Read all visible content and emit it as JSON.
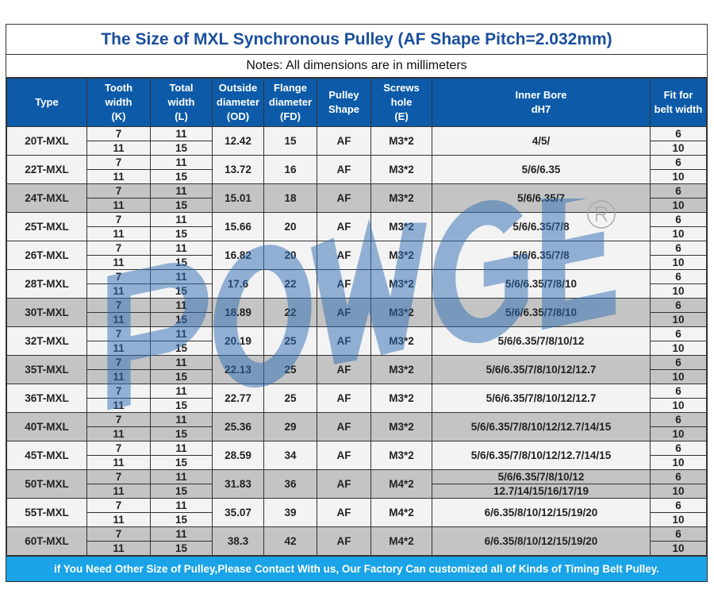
{
  "title": "The Size of MXL Synchronous Pulley (AF Shape Pitch=2.032mm)",
  "notes": "Notes: All dimensions are in millimeters",
  "headers": [
    [
      "Type"
    ],
    [
      "Tooth",
      "width",
      "(K)"
    ],
    [
      "Total",
      "width",
      "(L)"
    ],
    [
      "Outside",
      "diameter",
      "(OD)"
    ],
    [
      "Flange",
      "diameter",
      "(FD)"
    ],
    [
      "Pulley",
      "Shape"
    ],
    [
      "Screws",
      "hole",
      "(E)"
    ],
    [
      "Inner Bore",
      "dH7"
    ],
    [
      "Fit for",
      "belt width"
    ]
  ],
  "rows": [
    {
      "type": "20T-MXL",
      "k": [
        "7",
        "11"
      ],
      "l": [
        "11",
        "15"
      ],
      "od": "12.42",
      "fd": "15",
      "shape": "AF",
      "e": "M3*2",
      "bore": [
        "4/5/"
      ],
      "fit": [
        "6",
        "10"
      ],
      "shade": false
    },
    {
      "type": "22T-MXL",
      "k": [
        "7",
        "11"
      ],
      "l": [
        "11",
        "15"
      ],
      "od": "13.72",
      "fd": "16",
      "shape": "AF",
      "e": "M3*2",
      "bore": [
        "5/6/6.35"
      ],
      "fit": [
        "6",
        "10"
      ],
      "shade": false
    },
    {
      "type": "24T-MXL",
      "k": [
        "7",
        "11"
      ],
      "l": [
        "11",
        "15"
      ],
      "od": "15.01",
      "fd": "18",
      "shape": "AF",
      "e": "M3*2",
      "bore": [
        "5/6/6.35/7"
      ],
      "fit": [
        "6",
        "10"
      ],
      "shade": true
    },
    {
      "type": "25T-MXL",
      "k": [
        "7",
        "11"
      ],
      "l": [
        "11",
        "15"
      ],
      "od": "15.66",
      "fd": "20",
      "shape": "AF",
      "e": "M3*2",
      "bore": [
        "5/6/6.35/7/8"
      ],
      "fit": [
        "6",
        "10"
      ],
      "shade": false
    },
    {
      "type": "26T-MXL",
      "k": [
        "7",
        "11"
      ],
      "l": [
        "11",
        "15"
      ],
      "od": "16.82",
      "fd": "20",
      "shape": "AF",
      "e": "M3*2",
      "bore": [
        "5/6/6.35/7/8"
      ],
      "fit": [
        "6",
        "10"
      ],
      "shade": false
    },
    {
      "type": "28T-MXL",
      "k": [
        "7",
        "11"
      ],
      "l": [
        "11",
        "15"
      ],
      "od": "17.6",
      "fd": "22",
      "shape": "AF",
      "e": "M3*2",
      "bore": [
        "5/6/6.35/7/8/10"
      ],
      "fit": [
        "6",
        "10"
      ],
      "shade": false
    },
    {
      "type": "30T-MXL",
      "k": [
        "7",
        "11"
      ],
      "l": [
        "11",
        "15"
      ],
      "od": "18.89",
      "fd": "22",
      "shape": "AF",
      "e": "M3*2",
      "bore": [
        "5/6/6.35/7/8/10"
      ],
      "fit": [
        "6",
        "10"
      ],
      "shade": true
    },
    {
      "type": "32T-MXL",
      "k": [
        "7",
        "11"
      ],
      "l": [
        "11",
        "15"
      ],
      "od": "20.19",
      "fd": "25",
      "shape": "AF",
      "e": "M3*2",
      "bore": [
        "5/6/6.35/7/8/10/12"
      ],
      "fit": [
        "6",
        "10"
      ],
      "shade": false
    },
    {
      "type": "35T-MXL",
      "k": [
        "7",
        "11"
      ],
      "l": [
        "11",
        "15"
      ],
      "od": "22.13",
      "fd": "25",
      "shape": "AF",
      "e": "M3*2",
      "bore": [
        "5/6/6.35/7/8/10/12/12.7"
      ],
      "fit": [
        "6",
        "10"
      ],
      "shade": true
    },
    {
      "type": "36T-MXL",
      "k": [
        "7",
        "11"
      ],
      "l": [
        "11",
        "15"
      ],
      "od": "22.77",
      "fd": "25",
      "shape": "AF",
      "e": "M3*2",
      "bore": [
        "5/6/6.35/7/8/10/12/12.7"
      ],
      "fit": [
        "6",
        "10"
      ],
      "shade": false
    },
    {
      "type": "40T-MXL",
      "k": [
        "7",
        "11"
      ],
      "l": [
        "11",
        "15"
      ],
      "od": "25.36",
      "fd": "29",
      "shape": "AF",
      "e": "M3*2",
      "bore": [
        "5/6/6.35/7/8/10/12/12.7/14/15"
      ],
      "fit": [
        "6",
        "10"
      ],
      "shade": true
    },
    {
      "type": "45T-MXL",
      "k": [
        "7",
        "11"
      ],
      "l": [
        "11",
        "15"
      ],
      "od": "28.59",
      "fd": "34",
      "shape": "AF",
      "e": "M3*2",
      "bore": [
        "5/6/6.35/7/8/10/12/12.7/14/15"
      ],
      "fit": [
        "6",
        "10"
      ],
      "shade": false
    },
    {
      "type": "50T-MXL",
      "k": [
        "7",
        "11"
      ],
      "l": [
        "11",
        "15"
      ],
      "od": "31.83",
      "fd": "36",
      "shape": "AF",
      "e": "M4*2",
      "bore": [
        "5/6/6.35/7/8/10/12",
        "12.7/14/15/16/17/19"
      ],
      "fit": [
        "6",
        "10"
      ],
      "shade": true
    },
    {
      "type": "55T-MXL",
      "k": [
        "7",
        "11"
      ],
      "l": [
        "11",
        "15"
      ],
      "od": "35.07",
      "fd": "39",
      "shape": "AF",
      "e": "M4*2",
      "bore": [
        "6/6.35/8/10/12/15/19/20"
      ],
      "fit": [
        "6",
        "10"
      ],
      "shade": false
    },
    {
      "type": "60T-MXL",
      "k": [
        "7",
        "11"
      ],
      "l": [
        "11",
        "15"
      ],
      "od": "38.3",
      "fd": "42",
      "shape": "AF",
      "e": "M4*2",
      "bore": [
        "6/6.35/8/10/12/15/19/20"
      ],
      "fit": [
        "6",
        "10"
      ],
      "shade": true
    }
  ],
  "footer": "if You Need Other Size of Pulley,Please Contact With us, Our Factory Can customized all of Kinds of Timing Belt Pulley.",
  "watermark": {
    "text": "POWGE",
    "mark": "®",
    "color": "#2f6db5"
  },
  "colors": {
    "header": "#0d5ba8",
    "title": "#1a4f9c",
    "footer": "#1aa3e6",
    "shade": "#c4c4c4"
  }
}
